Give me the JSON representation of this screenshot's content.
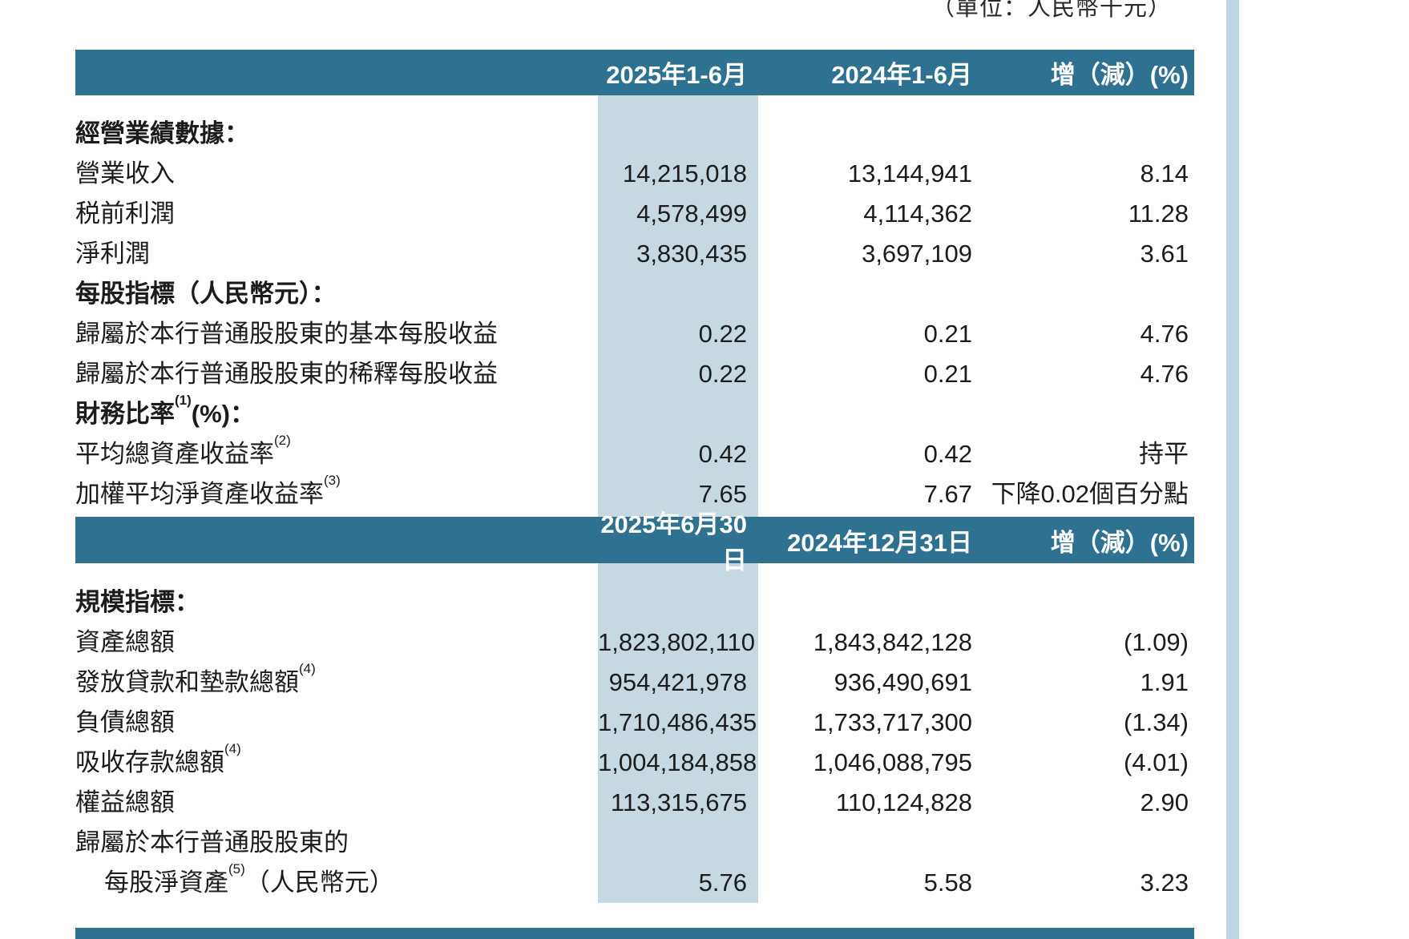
{
  "page": {
    "unit_note": "（單位：人民幣千元）"
  },
  "colors": {
    "header_bg": "#2e7191",
    "band_bg": "#c6d9e2",
    "stripe_bg": "#bcd7e1",
    "text_color": "#1c1c1c"
  },
  "table1": {
    "headers": [
      "2025年1-6月",
      "2024年1-6月",
      "增（減）(%)"
    ],
    "rows": [
      {
        "label": "經營業績數據："
      },
      {
        "label": "營業收入",
        "v1": "14,215,018",
        "v2": "13,144,941",
        "chg": "8.14"
      },
      {
        "label": "税前利潤",
        "v1": "4,578,499",
        "v2": "4,114,362",
        "chg": "11.28"
      },
      {
        "label": "淨利潤",
        "v1": "3,830,435",
        "v2": "3,697,109",
        "chg": "3.61"
      },
      {
        "label": "每股指標（人民幣元）："
      },
      {
        "label": "歸屬於本行普通股股東的基本每股收益",
        "v1": "0.22",
        "v2": "0.21",
        "chg": "4.76"
      },
      {
        "label": "歸屬於本行普通股股東的稀釋每股收益",
        "v1": "0.22",
        "v2": "0.21",
        "chg": "4.76"
      },
      {
        "label": "財務比率",
        "sup": "(1)",
        "suffix": "(%)："
      },
      {
        "label": "平均總資產收益率",
        "sup": "(2)",
        "v1": "0.42",
        "v2": "0.42",
        "chg": "持平"
      },
      {
        "label": "加權平均淨資產收益率",
        "sup": "(3)",
        "v1": "7.65",
        "v2": "7.67",
        "chg": "下降0.02個百分點"
      }
    ]
  },
  "table2": {
    "headers": [
      "2025年6月30日",
      "2024年12月31日",
      "增（減）(%)"
    ],
    "rows": [
      {
        "label": "規模指標："
      },
      {
        "label": "資產總額",
        "v1": "1,823,802,110",
        "v2": "1,843,842,128",
        "chg": "(1.09)"
      },
      {
        "label": "發放貸款和墊款總額",
        "sup": "(4)",
        "v1": "954,421,978",
        "v2": "936,490,691",
        "chg": "1.91"
      },
      {
        "label": "負債總額",
        "v1": "1,710,486,435",
        "v2": "1,733,717,300",
        "chg": "(1.34)"
      },
      {
        "label": "吸收存款總額",
        "sup": "(4)",
        "v1": "1,004,184,858",
        "v2": "1,046,088,795",
        "chg": "(4.01)"
      },
      {
        "label": "權益總額",
        "v1": "113,315,675",
        "v2": "110,124,828",
        "chg": "2.90"
      },
      {
        "label": "歸屬於本行普通股股東的"
      },
      {
        "label": "每股淨資產",
        "sup": "(5)",
        "suffix": "（人民幣元）",
        "v1": "5.76",
        "v2": "5.58",
        "chg": "3.23"
      }
    ]
  }
}
